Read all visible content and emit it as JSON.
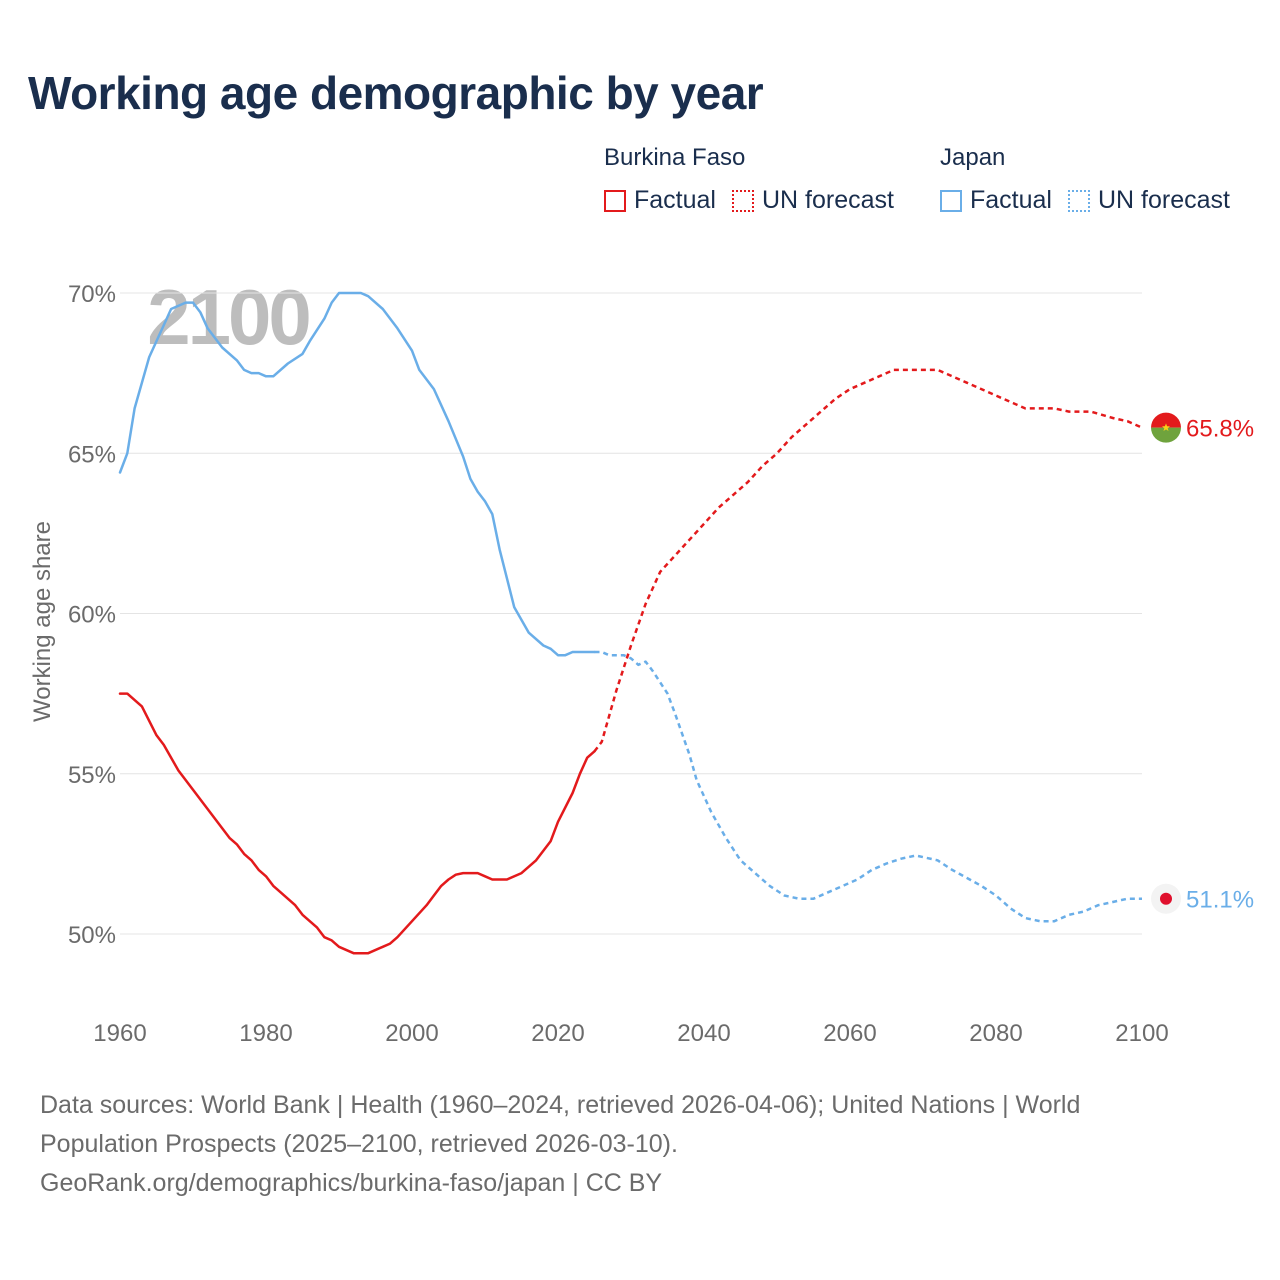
{
  "title": "Working age demographic by year",
  "legend": {
    "groups": [
      {
        "country": "Burkina Faso",
        "factual": "Factual",
        "forecast": "UN forecast",
        "color": "#e31a1c"
      },
      {
        "country": "Japan",
        "factual": "Factual",
        "forecast": "UN forecast",
        "color": "#6aaee8"
      }
    ]
  },
  "footer": {
    "sources": "Data sources: World Bank | Health (1960–2024, retrieved 2026-04-06); United Nations | World Population Prospects (2025–2100, retrieved 2026-03-10).",
    "credit": "GeoRank.org/demographics/burkina-faso/japan | CC BY"
  },
  "chart_data": {
    "type": "line",
    "ylabel": "Working age share",
    "xlim": [
      1960,
      2100
    ],
    "ylim": [
      48,
      71
    ],
    "x_ticks": [
      1960,
      1980,
      2000,
      2020,
      2040,
      2060,
      2080,
      2100
    ],
    "y_ticks": [
      50,
      55,
      60,
      65,
      70
    ],
    "y_tick_labels": [
      "50%",
      "55%",
      "60%",
      "65%",
      "70%"
    ],
    "year_watermark": "2100",
    "series": [
      {
        "name": "Burkina Faso",
        "color": "#e31a1c",
        "end_label": "65.8%",
        "factual": [
          [
            1960,
            57.5
          ],
          [
            1961,
            57.5
          ],
          [
            1963,
            57.1
          ],
          [
            1965,
            56.2
          ],
          [
            1966,
            55.9
          ],
          [
            1968,
            55.1
          ],
          [
            1970,
            54.5
          ],
          [
            1972,
            53.9
          ],
          [
            1974,
            53.3
          ],
          [
            1975,
            53.0
          ],
          [
            1976,
            52.8
          ],
          [
            1977,
            52.5
          ],
          [
            1978,
            52.3
          ],
          [
            1979,
            52.0
          ],
          [
            1980,
            51.8
          ],
          [
            1981,
            51.5
          ],
          [
            1982,
            51.3
          ],
          [
            1984,
            50.9
          ],
          [
            1985,
            50.6
          ],
          [
            1986,
            50.4
          ],
          [
            1987,
            50.2
          ],
          [
            1988,
            49.9
          ],
          [
            1989,
            49.8
          ],
          [
            1990,
            49.6
          ],
          [
            1992,
            49.4
          ],
          [
            1994,
            49.4
          ],
          [
            1996,
            49.6
          ],
          [
            1997,
            49.7
          ],
          [
            1998,
            49.9
          ],
          [
            2000,
            50.4
          ],
          [
            2002,
            50.9
          ],
          [
            2003,
            51.2
          ],
          [
            2004,
            51.5
          ],
          [
            2005,
            51.7
          ],
          [
            2006,
            51.85
          ],
          [
            2007,
            51.9
          ],
          [
            2009,
            51.9
          ],
          [
            2010,
            51.8
          ],
          [
            2011,
            51.7
          ],
          [
            2013,
            51.7
          ],
          [
            2015,
            51.9
          ],
          [
            2017,
            52.3
          ],
          [
            2019,
            52.9
          ],
          [
            2020,
            53.5
          ],
          [
            2022,
            54.4
          ],
          [
            2023,
            55.0
          ],
          [
            2024,
            55.5
          ],
          [
            2025,
            55.7
          ]
        ],
        "forecast": [
          [
            2025,
            55.7
          ],
          [
            2026,
            56.0
          ],
          [
            2027,
            56.8
          ],
          [
            2028,
            57.6
          ],
          [
            2030,
            59.0
          ],
          [
            2032,
            60.3
          ],
          [
            2034,
            61.3
          ],
          [
            2036,
            61.8
          ],
          [
            2038,
            62.3
          ],
          [
            2040,
            62.8
          ],
          [
            2042,
            63.3
          ],
          [
            2044,
            63.7
          ],
          [
            2046,
            64.1
          ],
          [
            2048,
            64.6
          ],
          [
            2050,
            65.0
          ],
          [
            2052,
            65.5
          ],
          [
            2054,
            65.9
          ],
          [
            2056,
            66.3
          ],
          [
            2058,
            66.7
          ],
          [
            2060,
            67.0
          ],
          [
            2062,
            67.2
          ],
          [
            2064,
            67.4
          ],
          [
            2066,
            67.6
          ],
          [
            2068,
            67.6
          ],
          [
            2072,
            67.6
          ],
          [
            2074,
            67.4
          ],
          [
            2076,
            67.2
          ],
          [
            2078,
            67.0
          ],
          [
            2080,
            66.8
          ],
          [
            2082,
            66.6
          ],
          [
            2084,
            66.4
          ],
          [
            2088,
            66.4
          ],
          [
            2090,
            66.3
          ],
          [
            2093,
            66.3
          ],
          [
            2096,
            66.1
          ],
          [
            2098,
            66.0
          ],
          [
            2100,
            65.8
          ]
        ]
      },
      {
        "name": "Japan",
        "color": "#6aaee8",
        "end_label": "51.1%",
        "factual": [
          [
            1960,
            64.4
          ],
          [
            1961,
            65.0
          ],
          [
            1962,
            66.4
          ],
          [
            1964,
            68.0
          ],
          [
            1966,
            69.0
          ],
          [
            1967,
            69.5
          ],
          [
            1969,
            69.7
          ],
          [
            1970,
            69.7
          ],
          [
            1971,
            69.4
          ],
          [
            1972,
            68.9
          ],
          [
            1974,
            68.3
          ],
          [
            1976,
            67.9
          ],
          [
            1977,
            67.6
          ],
          [
            1978,
            67.5
          ],
          [
            1979,
            67.5
          ],
          [
            1980,
            67.4
          ],
          [
            1981,
            67.4
          ],
          [
            1983,
            67.8
          ],
          [
            1985,
            68.1
          ],
          [
            1986,
            68.5
          ],
          [
            1988,
            69.2
          ],
          [
            1989,
            69.7
          ],
          [
            1990,
            70.0
          ],
          [
            1991,
            70.0
          ],
          [
            1993,
            70.0
          ],
          [
            1994,
            69.9
          ],
          [
            1996,
            69.5
          ],
          [
            1998,
            68.9
          ],
          [
            2000,
            68.2
          ],
          [
            2001,
            67.6
          ],
          [
            2003,
            67.0
          ],
          [
            2005,
            66.0
          ],
          [
            2007,
            64.9
          ],
          [
            2008,
            64.2
          ],
          [
            2009,
            63.8
          ],
          [
            2010,
            63.5
          ],
          [
            2011,
            63.1
          ],
          [
            2012,
            62.0
          ],
          [
            2013,
            61.1
          ],
          [
            2014,
            60.2
          ],
          [
            2016,
            59.4
          ],
          [
            2018,
            59.0
          ],
          [
            2019,
            58.9
          ],
          [
            2020,
            58.7
          ],
          [
            2021,
            58.7
          ],
          [
            2022,
            58.8
          ],
          [
            2025,
            58.8
          ]
        ],
        "forecast": [
          [
            2025,
            58.8
          ],
          [
            2026,
            58.8
          ],
          [
            2027,
            58.7
          ],
          [
            2029,
            58.7
          ],
          [
            2030,
            58.6
          ],
          [
            2031,
            58.4
          ],
          [
            2032,
            58.5
          ],
          [
            2033,
            58.2
          ],
          [
            2035,
            57.5
          ],
          [
            2036,
            56.9
          ],
          [
            2038,
            55.6
          ],
          [
            2039,
            54.8
          ],
          [
            2041,
            53.8
          ],
          [
            2043,
            53.0
          ],
          [
            2045,
            52.3
          ],
          [
            2047,
            51.9
          ],
          [
            2049,
            51.5
          ],
          [
            2051,
            51.2
          ],
          [
            2053,
            51.1
          ],
          [
            2055,
            51.1
          ],
          [
            2057,
            51.3
          ],
          [
            2059,
            51.5
          ],
          [
            2061,
            51.7
          ],
          [
            2063,
            52.0
          ],
          [
            2065,
            52.2
          ],
          [
            2067,
            52.35
          ],
          [
            2069,
            52.45
          ],
          [
            2070,
            52.4
          ],
          [
            2072,
            52.3
          ],
          [
            2074,
            52.0
          ],
          [
            2076,
            51.75
          ],
          [
            2078,
            51.5
          ],
          [
            2080,
            51.2
          ],
          [
            2082,
            50.8
          ],
          [
            2084,
            50.5
          ],
          [
            2086,
            50.4
          ],
          [
            2088,
            50.4
          ],
          [
            2090,
            50.6
          ],
          [
            2092,
            50.7
          ],
          [
            2094,
            50.9
          ],
          [
            2096,
            51.0
          ],
          [
            2098,
            51.1
          ],
          [
            2100,
            51.1
          ]
        ]
      }
    ]
  }
}
